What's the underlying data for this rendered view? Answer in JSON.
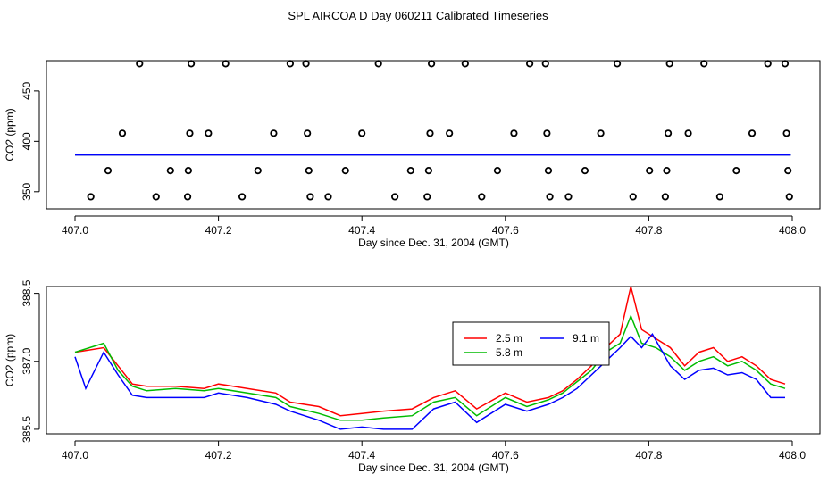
{
  "title": "SPL AIRCOA D  Day 060211  Calibrated Timeseries",
  "chart_data": [
    {
      "type": "scatter",
      "xlabel": "Day since Dec. 31, 2004 (GMT)",
      "ylabel": "CO2 (ppm)",
      "xlim": [
        407.0,
        408.0
      ],
      "ylim": [
        333,
        480
      ],
      "xticks": [
        407.0,
        407.2,
        407.4,
        407.6,
        407.8,
        408.0
      ],
      "xtick_labels": [
        "407.0",
        "407.2",
        "407.4",
        "407.6",
        "407.8",
        "408.0"
      ],
      "yticks": [
        350,
        400,
        450
      ],
      "ytick_labels": [
        "350",
        "400",
        "450"
      ],
      "grid": false,
      "points": [
        [
          407.022,
          345
        ],
        [
          407.046,
          371
        ],
        [
          407.066,
          408
        ],
        [
          407.09,
          477
        ],
        [
          407.113,
          345
        ],
        [
          407.133,
          371
        ],
        [
          407.157,
          345
        ],
        [
          407.158,
          371
        ],
        [
          407.16,
          408
        ],
        [
          407.162,
          477
        ],
        [
          407.186,
          408
        ],
        [
          407.21,
          477
        ],
        [
          407.233,
          345
        ],
        [
          407.255,
          371
        ],
        [
          407.277,
          408
        ],
        [
          407.3,
          477
        ],
        [
          407.322,
          477
        ],
        [
          407.324,
          408
        ],
        [
          407.326,
          371
        ],
        [
          407.328,
          345
        ],
        [
          407.353,
          345
        ],
        [
          407.377,
          371
        ],
        [
          407.4,
          408
        ],
        [
          407.423,
          477
        ],
        [
          407.446,
          345
        ],
        [
          407.468,
          371
        ],
        [
          407.491,
          345
        ],
        [
          407.493,
          371
        ],
        [
          407.495,
          408
        ],
        [
          407.497,
          477
        ],
        [
          407.522,
          408
        ],
        [
          407.544,
          477
        ],
        [
          407.567,
          345
        ],
        [
          407.589,
          371
        ],
        [
          407.612,
          408
        ],
        [
          407.634,
          477
        ],
        [
          407.656,
          477
        ],
        [
          407.658,
          408
        ],
        [
          407.66,
          371
        ],
        [
          407.662,
          345
        ],
        [
          407.688,
          345
        ],
        [
          407.711,
          371
        ],
        [
          407.733,
          408
        ],
        [
          407.756,
          477
        ],
        [
          407.778,
          345
        ],
        [
          407.801,
          371
        ],
        [
          407.823,
          345
        ],
        [
          407.825,
          371
        ],
        [
          407.827,
          408
        ],
        [
          407.829,
          477
        ],
        [
          407.855,
          408
        ],
        [
          407.877,
          477
        ],
        [
          407.899,
          345
        ],
        [
          407.922,
          371
        ],
        [
          407.944,
          408
        ],
        [
          407.966,
          477
        ],
        [
          407.99,
          477
        ],
        [
          407.992,
          408
        ],
        [
          407.994,
          371
        ],
        [
          407.996,
          345
        ]
      ],
      "series": [
        {
          "color": "#ff0000",
          "level": 386.7
        },
        {
          "color": "#00bb00",
          "level": 386.6
        },
        {
          "color": "#0000ff",
          "level": 386.5
        }
      ]
    },
    {
      "type": "line",
      "xlabel": "Day since Dec. 31, 2004 (GMT)",
      "ylabel": "CO2 (ppm)",
      "xlim": [
        407.0,
        408.0
      ],
      "ylim": [
        385.4,
        388.65
      ],
      "xticks": [
        407.0,
        407.2,
        407.4,
        407.6,
        407.8,
        408.0
      ],
      "xtick_labels": [
        "407.0",
        "407.2",
        "407.4",
        "407.6",
        "407.8",
        "408.0"
      ],
      "yticks": [
        385.5,
        387.0,
        388.5
      ],
      "ytick_labels": [
        "385.5",
        "387.0",
        "388.5"
      ],
      "grid": false,
      "legend": "top-center",
      "series": [
        {
          "name": "2.5 m",
          "color": "#ff0000",
          "points": [
            [
              407.0,
              387.2
            ],
            [
              407.04,
              387.3
            ],
            [
              407.06,
              386.9
            ],
            [
              407.08,
              386.5
            ],
            [
              407.1,
              386.45
            ],
            [
              407.14,
              386.45
            ],
            [
              407.18,
              386.4
            ],
            [
              407.2,
              386.5
            ],
            [
              407.24,
              386.4
            ],
            [
              407.28,
              386.3
            ],
            [
              407.3,
              386.1
            ],
            [
              407.34,
              386.0
            ],
            [
              407.37,
              385.8
            ],
            [
              407.4,
              385.85
            ],
            [
              407.43,
              385.9
            ],
            [
              407.47,
              385.95
            ],
            [
              407.5,
              386.2
            ],
            [
              407.53,
              386.35
            ],
            [
              407.56,
              385.95
            ],
            [
              407.6,
              386.3
            ],
            [
              407.63,
              386.1
            ],
            [
              407.66,
              386.2
            ],
            [
              407.68,
              386.35
            ],
            [
              407.7,
              386.6
            ],
            [
              407.72,
              386.9
            ],
            [
              407.74,
              387.3
            ],
            [
              407.76,
              387.6
            ],
            [
              407.775,
              388.65
            ],
            [
              407.79,
              387.7
            ],
            [
              407.81,
              387.5
            ],
            [
              407.83,
              387.3
            ],
            [
              407.85,
              386.9
            ],
            [
              407.87,
              387.2
            ],
            [
              407.89,
              387.3
            ],
            [
              407.91,
              387.0
            ],
            [
              407.93,
              387.1
            ],
            [
              407.95,
              386.9
            ],
            [
              407.97,
              386.6
            ],
            [
              407.99,
              386.5
            ]
          ]
        },
        {
          "name": "5.8 m",
          "color": "#00bb00",
          "points": [
            [
              407.0,
              387.2
            ],
            [
              407.04,
              387.4
            ],
            [
              407.06,
              386.8
            ],
            [
              407.08,
              386.45
            ],
            [
              407.1,
              386.35
            ],
            [
              407.14,
              386.4
            ],
            [
              407.18,
              386.35
            ],
            [
              407.2,
              386.4
            ],
            [
              407.24,
              386.3
            ],
            [
              407.28,
              386.2
            ],
            [
              407.3,
              386.0
            ],
            [
              407.34,
              385.85
            ],
            [
              407.37,
              385.7
            ],
            [
              407.4,
              385.7
            ],
            [
              407.43,
              385.75
            ],
            [
              407.47,
              385.8
            ],
            [
              407.5,
              386.1
            ],
            [
              407.53,
              386.2
            ],
            [
              407.56,
              385.8
            ],
            [
              407.6,
              386.2
            ],
            [
              407.63,
              386.0
            ],
            [
              407.66,
              386.15
            ],
            [
              407.68,
              386.3
            ],
            [
              407.7,
              386.55
            ],
            [
              407.72,
              386.8
            ],
            [
              407.74,
              387.2
            ],
            [
              407.76,
              387.4
            ],
            [
              407.775,
              388.0
            ],
            [
              407.79,
              387.4
            ],
            [
              407.81,
              387.3
            ],
            [
              407.83,
              387.1
            ],
            [
              407.85,
              386.8
            ],
            [
              407.87,
              387.0
            ],
            [
              407.89,
              387.1
            ],
            [
              407.91,
              386.9
            ],
            [
              407.93,
              387.0
            ],
            [
              407.95,
              386.8
            ],
            [
              407.97,
              386.5
            ],
            [
              407.99,
              386.4
            ]
          ]
        },
        {
          "name": "9.1 m",
          "color": "#0000ff",
          "points": [
            [
              407.0,
              387.1
            ],
            [
              407.015,
              386.4
            ],
            [
              407.04,
              387.2
            ],
            [
              407.06,
              386.7
            ],
            [
              407.08,
              386.25
            ],
            [
              407.1,
              386.2
            ],
            [
              407.14,
              386.2
            ],
            [
              407.18,
              386.2
            ],
            [
              407.2,
              386.3
            ],
            [
              407.24,
              386.2
            ],
            [
              407.28,
              386.05
            ],
            [
              407.3,
              385.9
            ],
            [
              407.34,
              385.7
            ],
            [
              407.37,
              385.5
            ],
            [
              407.4,
              385.55
            ],
            [
              407.43,
              385.5
            ],
            [
              407.47,
              385.5
            ],
            [
              407.5,
              385.95
            ],
            [
              407.53,
              386.1
            ],
            [
              407.56,
              385.65
            ],
            [
              407.6,
              386.05
            ],
            [
              407.63,
              385.9
            ],
            [
              407.66,
              386.05
            ],
            [
              407.68,
              386.2
            ],
            [
              407.7,
              386.4
            ],
            [
              407.72,
              386.7
            ],
            [
              407.74,
              387.0
            ],
            [
              407.76,
              387.3
            ],
            [
              407.775,
              387.55
            ],
            [
              407.79,
              387.3
            ],
            [
              407.805,
              387.6
            ],
            [
              407.83,
              386.9
            ],
            [
              407.85,
              386.6
            ],
            [
              407.87,
              386.8
            ],
            [
              407.89,
              386.85
            ],
            [
              407.91,
              386.7
            ],
            [
              407.93,
              386.75
            ],
            [
              407.95,
              386.6
            ],
            [
              407.97,
              386.2
            ],
            [
              407.99,
              386.2
            ]
          ]
        }
      ]
    }
  ]
}
